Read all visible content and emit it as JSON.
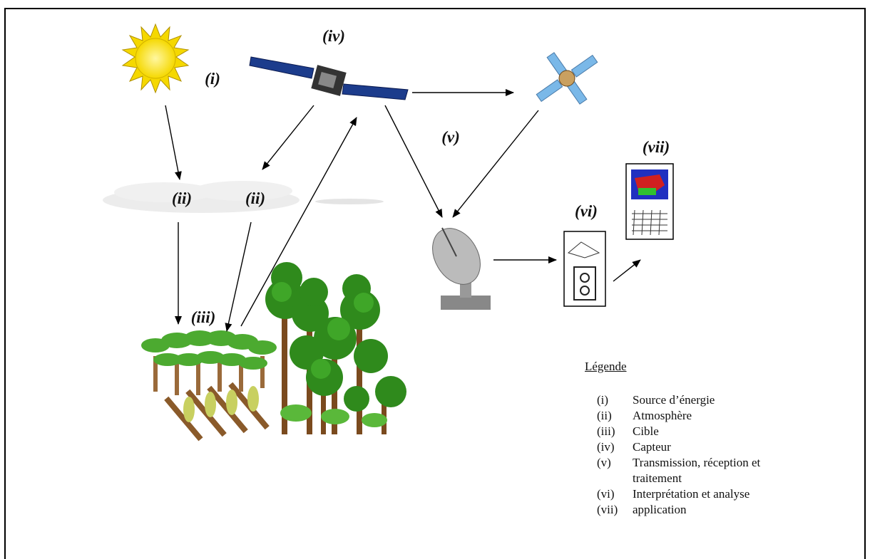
{
  "nodes": [
    {
      "label": "(i)"
    },
    {
      "label": "(ii)"
    },
    {
      "label": "(ii)"
    },
    {
      "label": "(iii)"
    },
    {
      "label": "(iv)"
    },
    {
      "label": "(v)"
    },
    {
      "label": "(vi)"
    },
    {
      "label": "(vii)"
    }
  ],
  "legend": {
    "title": "Légende",
    "items": [
      {
        "key": "(i)",
        "text": "Source d’énergie"
      },
      {
        "key": "(ii)",
        "text": "Atmosphère"
      },
      {
        "key": "(iii)",
        "text": "Cible"
      },
      {
        "key": "(iv)",
        "text": "Capteur"
      },
      {
        "key": "(v)",
        "text": "Transmission, réception et traitement"
      },
      {
        "key": "(vi)",
        "text": "Interprétation et analyse"
      },
      {
        "key": "(vii)",
        "text": "application"
      }
    ]
  }
}
